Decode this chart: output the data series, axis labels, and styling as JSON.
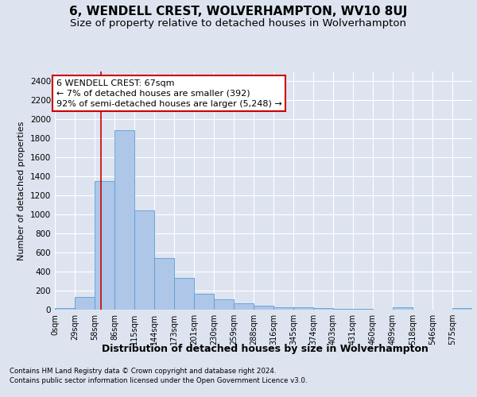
{
  "title": "6, WENDELL CREST, WOLVERHAMPTON, WV10 8UJ",
  "subtitle": "Size of property relative to detached houses in Wolverhampton",
  "xlabel": "Distribution of detached houses by size in Wolverhampton",
  "ylabel": "Number of detached properties",
  "footer_line1": "Contains HM Land Registry data © Crown copyright and database right 2024.",
  "footer_line2": "Contains public sector information licensed under the Open Government Licence v3.0.",
  "categories": [
    "0sqm",
    "29sqm",
    "58sqm",
    "86sqm",
    "115sqm",
    "144sqm",
    "173sqm",
    "201sqm",
    "230sqm",
    "259sqm",
    "288sqm",
    "316sqm",
    "345sqm",
    "374sqm",
    "403sqm",
    "431sqm",
    "460sqm",
    "489sqm",
    "518sqm",
    "546sqm",
    "575sqm"
  ],
  "values": [
    15,
    130,
    1350,
    1880,
    1045,
    545,
    330,
    165,
    110,
    65,
    38,
    28,
    25,
    15,
    8,
    5,
    0,
    22,
    0,
    0,
    15
  ],
  "bar_color": "#aec6e8",
  "bar_edge_color": "#5a9fd4",
  "annotation_line1": "6 WENDELL CREST: 67sqm",
  "annotation_line2": "← 7% of detached houses are smaller (392)",
  "annotation_line3": "92% of semi-detached houses are larger (5,248) →",
  "annotation_box_color": "#ffffff",
  "annotation_box_edge_color": "#cc0000",
  "vline_color": "#cc0000",
  "ylim": [
    0,
    2500
  ],
  "yticks": [
    0,
    200,
    400,
    600,
    800,
    1000,
    1200,
    1400,
    1600,
    1800,
    2000,
    2200,
    2400
  ],
  "background_color": "#dde4f0",
  "plot_background_color": "#dde4f0",
  "grid_color": "#ffffff",
  "title_fontsize": 11,
  "subtitle_fontsize": 9.5,
  "xlabel_fontsize": 9,
  "ylabel_fontsize": 8,
  "tick_fontsize": 7.5,
  "annotation_fontsize": 8,
  "bin_width": 29,
  "property_sqm": 67
}
